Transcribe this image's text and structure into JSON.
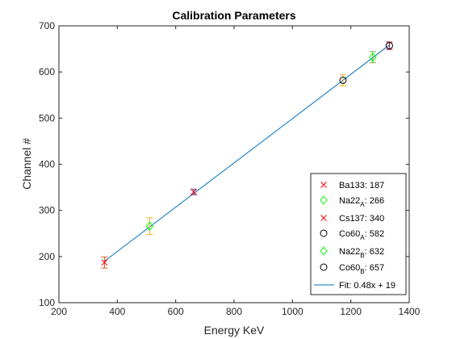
{
  "chart_data": {
    "type": "scatter",
    "title": "Calibration Parameters",
    "xlabel": "Energy KeV",
    "ylabel": "Channel #",
    "xlim": [
      200,
      1400
    ],
    "ylim": [
      100,
      700
    ],
    "xticks": [
      "200",
      "400",
      "600",
      "800",
      "1000",
      "1200",
      "1400"
    ],
    "yticks": [
      "100",
      "200",
      "300",
      "400",
      "500",
      "600",
      "700"
    ],
    "grid": false,
    "legend_position": "bottom-right",
    "points": [
      {
        "label_main": "Ba133",
        "label_sub": "",
        "label_value": ": 187",
        "x": 356,
        "y": 187,
        "err": 12,
        "marker": "x",
        "color": "#ff0000",
        "err_color": "#d95319"
      },
      {
        "label_main": "Na22",
        "label_sub": "A",
        "label_value": ": 266",
        "x": 511,
        "y": 266,
        "err": 18,
        "marker": "diamond",
        "color": "#00ff00",
        "err_color": "#edb120"
      },
      {
        "label_main": "Cs137",
        "label_sub": "",
        "label_value": ": 340",
        "x": 662,
        "y": 340,
        "err": 6,
        "marker": "x",
        "color": "#ff0000",
        "err_color": "#7e2f8e"
      },
      {
        "label_main": "Co60",
        "label_sub": "A",
        "label_value": ": 582",
        "x": 1173,
        "y": 582,
        "err": 12,
        "marker": "circle",
        "color": "#000000",
        "err_color": "#edb120"
      },
      {
        "label_main": "Na22",
        "label_sub": "B",
        "label_value": ": 632",
        "x": 1275,
        "y": 632,
        "err": 12,
        "marker": "diamond",
        "color": "#00ff00",
        "err_color": "#77ac30"
      },
      {
        "label_main": "Co60",
        "label_sub": "B",
        "label_value": ": 657",
        "x": 1332,
        "y": 657,
        "err": 8,
        "marker": "circle",
        "color": "#000000",
        "err_color": "#a2142f"
      }
    ],
    "fit": {
      "label": "Fit: 0.48x + 19",
      "slope": 0.48,
      "intercept": 19,
      "x_range": [
        356,
        1332
      ],
      "color": "#0072bd"
    }
  }
}
